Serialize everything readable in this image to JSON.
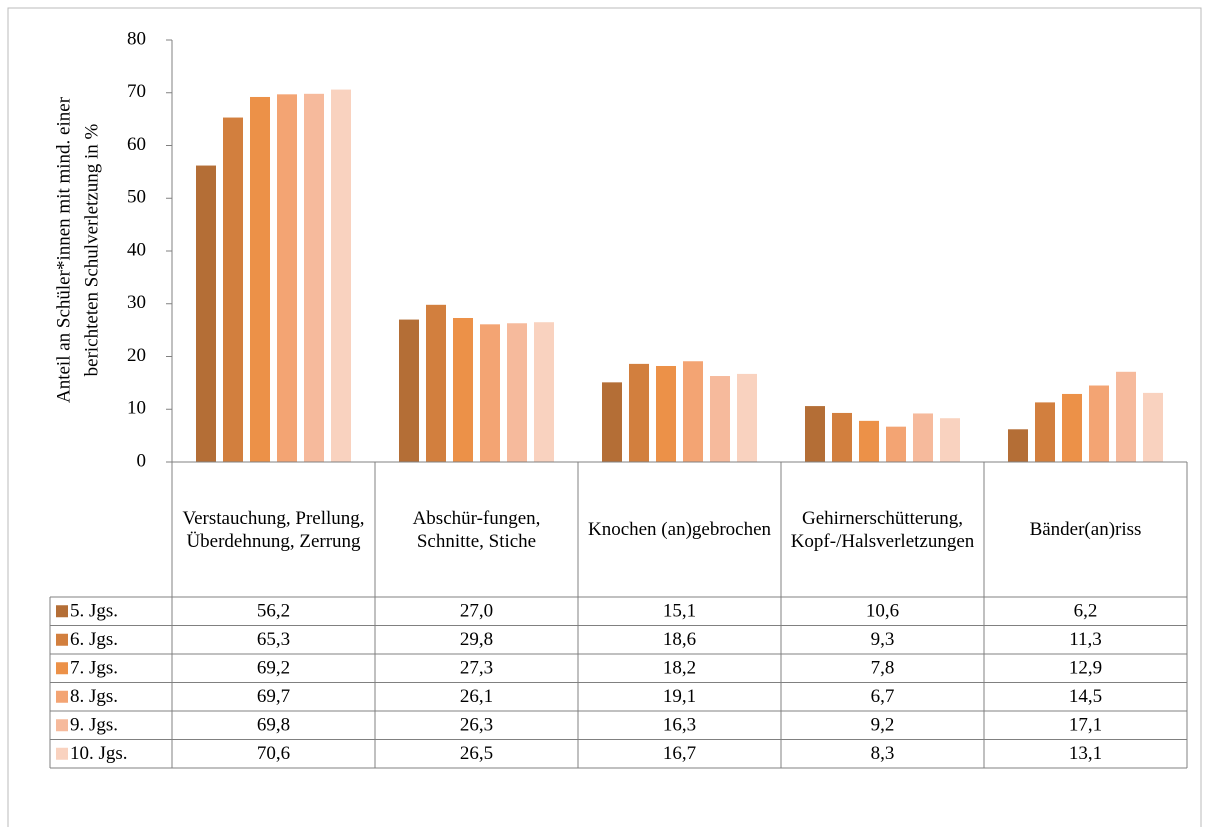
{
  "chart_data": {
    "type": "bar",
    "ylabel": [
      "Anteil an Schüler*innen mit mind. einer",
      "berichteten Schulverletzung in %"
    ],
    "categories": [
      "Verstauchung, Prellung, Überdehnung, Zerrung",
      "Abschür-fungen, Schnitte, Stiche",
      "Knochen (an)gebrochen",
      "Gehirnerschütterung, Kopf-/Halsverletzungen",
      "Bänder(an)riss"
    ],
    "series": [
      {
        "name": "5. Jgs.",
        "color": "#b46e36",
        "values": [
          56.2,
          27.0,
          15.1,
          10.6,
          6.2
        ],
        "value_labels": [
          "56,2",
          "27,0",
          "15,1",
          "10,6",
          "6,2"
        ]
      },
      {
        "name": "6. Jgs.",
        "color": "#d27f3e",
        "values": [
          65.3,
          29.8,
          18.6,
          9.3,
          11.3
        ],
        "value_labels": [
          "65,3",
          "29,8",
          "18,6",
          "9,3",
          "11,3"
        ]
      },
      {
        "name": "7. Jgs.",
        "color": "#ec9148",
        "values": [
          69.2,
          27.3,
          18.2,
          7.8,
          12.9
        ],
        "value_labels": [
          "69,2",
          "27,3",
          "18,2",
          "7,8",
          "12,9"
        ]
      },
      {
        "name": "8. Jgs.",
        "color": "#f3a473",
        "values": [
          69.7,
          26.1,
          19.1,
          6.7,
          14.5
        ],
        "value_labels": [
          "69,7",
          "26,1",
          "19,1",
          "6,7",
          "14,5"
        ]
      },
      {
        "name": "9. Jgs.",
        "color": "#f6ba9c",
        "values": [
          69.8,
          26.3,
          16.3,
          9.2,
          17.1
        ],
        "value_labels": [
          "69,8",
          "26,3",
          "16,3",
          "9,2",
          "17,1"
        ]
      },
      {
        "name": "10. Jgs.",
        "color": "#f9d2bf",
        "values": [
          70.6,
          26.5,
          16.7,
          8.3,
          13.1
        ],
        "value_labels": [
          "70,6",
          "26,5",
          "16,7",
          "8,3",
          "13,1"
        ]
      }
    ],
    "ylim": [
      0,
      80
    ],
    "yticks": [
      0,
      10,
      20,
      30,
      40,
      50,
      60,
      70,
      80
    ]
  }
}
